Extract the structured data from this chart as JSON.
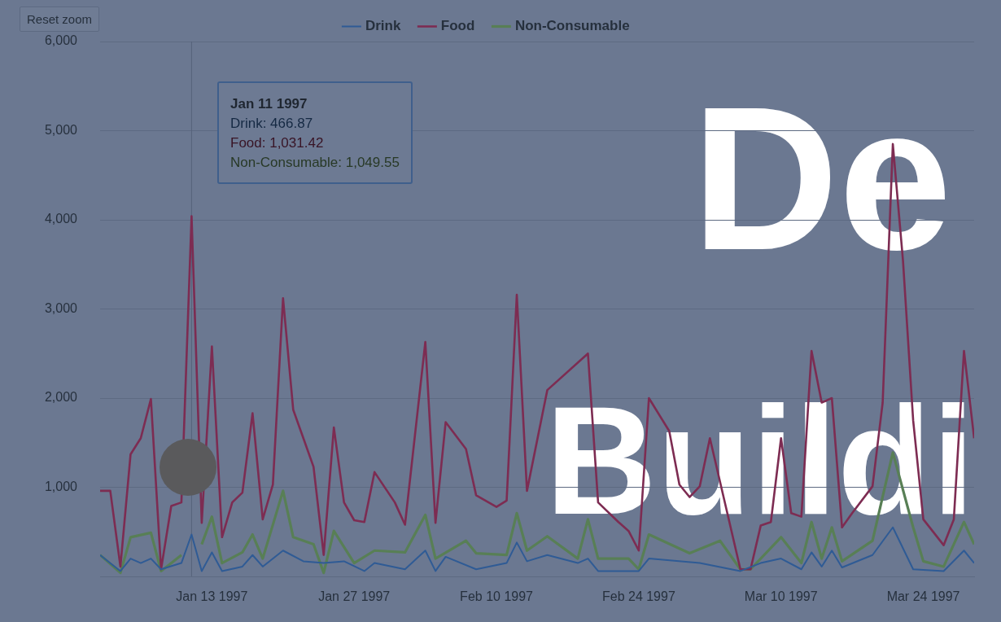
{
  "chart_data": {
    "type": "line",
    "xlim": [
      "1997-01-02",
      "1997-03-29"
    ],
    "xticks": [
      {
        "value": "1997-01-13",
        "label": "Jan 13 1997"
      },
      {
        "value": "1997-01-27",
        "label": "Jan 27 1997"
      },
      {
        "value": "1997-02-10",
        "label": "Feb 10 1997"
      },
      {
        "value": "1997-02-24",
        "label": "Feb 24 1997"
      },
      {
        "value": "1997-03-10",
        "label": "Mar 10 1997"
      },
      {
        "value": "1997-03-24",
        "label": "Mar 24 1997"
      }
    ],
    "ylim": [
      0,
      6000
    ],
    "yticks": [
      {
        "value": 0,
        "label": null
      },
      {
        "value": 1000,
        "label": "1,000"
      },
      {
        "value": 2000,
        "label": "2,000"
      },
      {
        "value": 3000,
        "label": "3,000"
      },
      {
        "value": 4000,
        "label": "4,000"
      },
      {
        "value": 5000,
        "label": "5,000"
      },
      {
        "value": 6000,
        "label": "6,000"
      }
    ],
    "grid": "y",
    "legend": "top",
    "marker": "none",
    "line_style": "solid",
    "ref_lines": [
      {
        "axis": "x",
        "value": "1997-01-11",
        "color": "#56627a"
      }
    ],
    "annotations": [
      "Reset zoom",
      "De",
      "Buildi",
      {
        "text": "Jan 11 1997",
        "x": "1997-01-11"
      },
      {
        "text": "Drink: 466.87",
        "x": "1997-01-11"
      },
      {
        "text": "Food: 1,031.42",
        "x": "1997-01-11"
      },
      {
        "text": "Non-Consumable: 1,049.55",
        "x": "1997-01-11"
      }
    ],
    "series": [
      {
        "name": "Drink",
        "color": "#2f5b95",
        "x": [
          "1997-01-02",
          "1997-01-04",
          "1997-01-05",
          "1997-01-06",
          "1997-01-07",
          "1997-01-08",
          "1997-01-10",
          "1997-01-11",
          "1997-01-12",
          "1997-01-13",
          "1997-01-14",
          "1997-01-16",
          "1997-01-17",
          "1997-01-18",
          "1997-01-20",
          "1997-01-22",
          "1997-01-24",
          "1997-01-26",
          "1997-01-28",
          "1997-01-29",
          "1997-02-01",
          "1997-02-03",
          "1997-02-04",
          "1997-02-05",
          "1997-02-08",
          "1997-02-11",
          "1997-02-12",
          "1997-02-13",
          "1997-02-15",
          "1997-02-18",
          "1997-02-19",
          "1997-02-20",
          "1997-02-24",
          "1997-02-25",
          "1997-03-02",
          "1997-03-06",
          "1997-03-08",
          "1997-03-10",
          "1997-03-12",
          "1997-03-13",
          "1997-03-14",
          "1997-03-15",
          "1997-03-16",
          "1997-03-19",
          "1997-03-21",
          "1997-03-23",
          "1997-03-26",
          "1997-03-28",
          "1997-03-29"
        ],
        "values": [
          240,
          60,
          200,
          150,
          200,
          80,
          150,
          470,
          60,
          270,
          60,
          110,
          240,
          110,
          290,
          170,
          150,
          170,
          60,
          150,
          80,
          290,
          60,
          220,
          80,
          150,
          380,
          170,
          240,
          150,
          200,
          60,
          60,
          200,
          150,
          60,
          150,
          200,
          80,
          270,
          110,
          290,
          100,
          240,
          550,
          80,
          60,
          290,
          150
        ]
      },
      {
        "name": "Food",
        "color": "#7d2c52",
        "x": [
          "1997-01-02",
          "1997-01-03",
          "1997-01-04",
          "1997-01-05",
          "1997-01-06",
          "1997-01-07",
          "1997-01-08",
          "1997-01-09",
          "1997-01-10",
          "1997-01-11",
          "1997-01-12",
          "1997-01-13",
          "1997-01-14",
          "1997-01-15",
          "1997-01-16",
          "1997-01-17",
          "1997-01-18",
          "1997-01-19",
          "1997-01-20",
          "1997-01-21",
          "1997-01-22",
          "1997-01-23",
          "1997-01-24",
          "1997-01-25",
          "1997-01-26",
          "1997-01-27",
          "1997-01-28",
          "1997-01-29",
          "1997-01-31",
          "1997-02-01",
          "1997-02-03",
          "1997-02-04",
          "1997-02-05",
          "1997-02-07",
          "1997-02-08",
          "1997-02-10",
          "1997-02-11",
          "1997-02-12",
          "1997-02-13",
          "1997-02-15",
          "1997-02-19",
          "1997-02-20",
          "1997-02-22",
          "1997-02-23",
          "1997-02-24",
          "1997-02-25",
          "1997-02-27",
          "1997-02-28",
          "1997-03-01",
          "1997-03-02",
          "1997-03-03",
          "1997-03-06",
          "1997-03-07",
          "1997-03-08",
          "1997-03-09",
          "1997-03-10",
          "1997-03-11",
          "1997-03-12",
          "1997-03-13",
          "1997-03-14",
          "1997-03-15",
          "1997-03-16",
          "1997-03-17",
          "1997-03-19",
          "1997-03-20",
          "1997-03-21",
          "1997-03-22",
          "1997-03-23",
          "1997-03-24",
          "1997-03-26",
          "1997-03-27",
          "1997-03-28",
          "1997-03-29"
        ],
        "values": [
          960,
          960,
          110,
          1370,
          1550,
          1990,
          80,
          790,
          830,
          4040,
          600,
          2580,
          440,
          830,
          940,
          1830,
          640,
          1030,
          3120,
          1870,
          1550,
          1230,
          240,
          1670,
          830,
          630,
          610,
          1170,
          830,
          580,
          2630,
          600,
          1730,
          1430,
          910,
          780,
          850,
          3160,
          960,
          2090,
          2500,
          830,
          610,
          510,
          290,
          2000,
          1630,
          1030,
          890,
          1010,
          1550,
          80,
          80,
          570,
          610,
          1550,
          710,
          670,
          2530,
          1950,
          2000,
          550,
          710,
          1010,
          1950,
          4850,
          3540,
          1750,
          640,
          350,
          640,
          2530,
          1550
        ]
      },
      {
        "name": "Non-Consumable",
        "color": "#587f55",
        "x": [
          "1997-01-02",
          "1997-01-04",
          "1997-01-05",
          "1997-01-07",
          "1997-01-08",
          "1997-01-10",
          "1997-01-11",
          "1997-01-12",
          "1997-01-13",
          "1997-01-14",
          "1997-01-16",
          "1997-01-17",
          "1997-01-18",
          "1997-01-20",
          "1997-01-21",
          "1997-01-23",
          "1997-01-24",
          "1997-01-25",
          "1997-01-27",
          "1997-01-29",
          "1997-02-01",
          "1997-02-03",
          "1997-02-04",
          "1997-02-07",
          "1997-02-08",
          "1997-02-11",
          "1997-02-12",
          "1997-02-13",
          "1997-02-15",
          "1997-02-18",
          "1997-02-19",
          "1997-02-20",
          "1997-02-23",
          "1997-02-24",
          "1997-02-25",
          "1997-03-01",
          "1997-03-04",
          "1997-03-06",
          "1997-03-07",
          "1997-03-10",
          "1997-03-12",
          "1997-03-13",
          "1997-03-14",
          "1997-03-15",
          "1997-03-16",
          "1997-03-19",
          "1997-03-21",
          "1997-03-23",
          "1997-03-24",
          "1997-03-26",
          "1997-03-28",
          "1997-03-29"
        ],
        "values": [
          240,
          40,
          440,
          490,
          60,
          240,
          null,
          360,
          670,
          150,
          270,
          470,
          200,
          960,
          440,
          360,
          40,
          510,
          150,
          290,
          270,
          690,
          200,
          400,
          260,
          240,
          710,
          290,
          450,
          200,
          640,
          200,
          200,
          80,
          470,
          260,
          400,
          80,
          80,
          440,
          150,
          610,
          200,
          550,
          170,
          400,
          1390,
          550,
          170,
          110,
          610,
          360
        ]
      }
    ]
  }
}
